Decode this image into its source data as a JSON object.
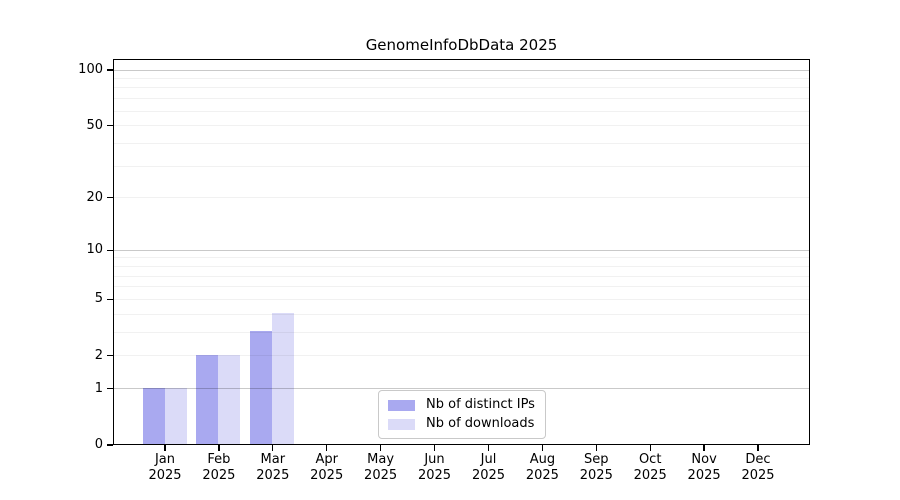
{
  "title": "GenomeInfoDbData 2025",
  "chart_data": {
    "type": "bar",
    "title": "GenomeInfoDbData 2025",
    "categories": [
      "Jan",
      "Feb",
      "Mar",
      "Apr",
      "May",
      "Jun",
      "Jul",
      "Aug",
      "Sep",
      "Oct",
      "Nov",
      "Dec"
    ],
    "category_year": "2025",
    "series": [
      {
        "name": "Nb of distinct IPs",
        "color": "#a9a9f0",
        "values": [
          1,
          2,
          3,
          0,
          0,
          0,
          0,
          0,
          0,
          0,
          0,
          0
        ]
      },
      {
        "name": "Nb of downloads",
        "color": "#dbdbf8",
        "values": [
          1,
          2,
          4,
          0,
          0,
          0,
          0,
          0,
          0,
          0,
          0,
          0
        ]
      }
    ],
    "xlabel": "",
    "ylabel": "",
    "yscale": "log10(1+y)",
    "ylim": [
      0,
      115
    ],
    "ytick_values": [
      0,
      1,
      2,
      5,
      10,
      20,
      50,
      100
    ],
    "major_grid_values": [
      1,
      10,
      100
    ],
    "minor_grid_values": [
      2,
      3,
      4,
      5,
      6,
      7,
      8,
      9,
      20,
      30,
      40,
      50,
      60,
      70,
      80,
      90
    ],
    "grid": "horizontal",
    "legend_position": "inside-bottom-center",
    "colors": {
      "major_grid": "#c9c9c9",
      "minor_grid": "#efefef",
      "spine": "#000000",
      "background": "#ffffff"
    }
  }
}
